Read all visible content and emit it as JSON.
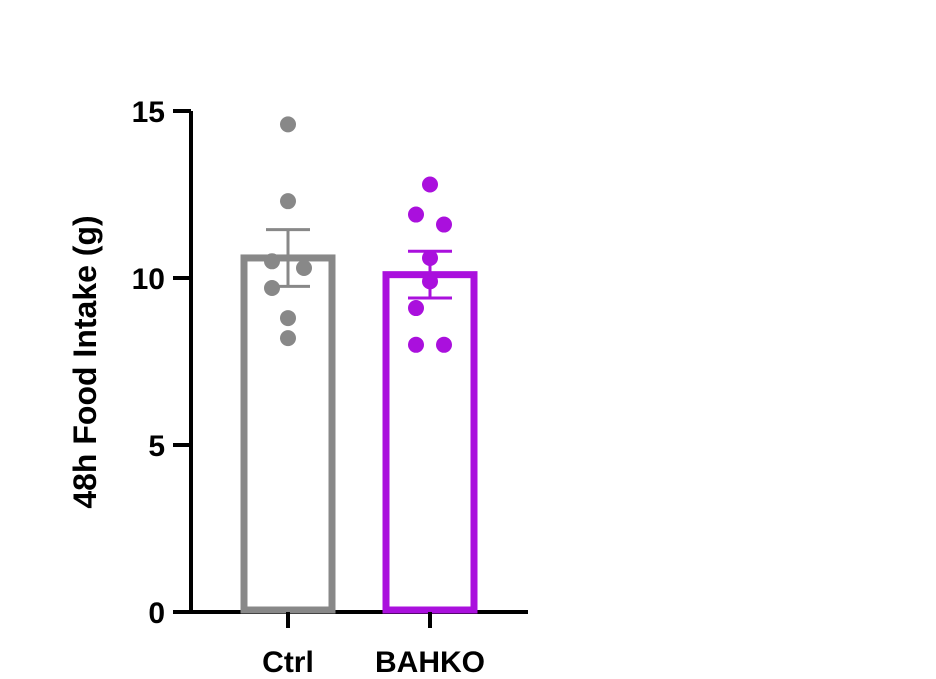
{
  "chart_data": {
    "type": "bar",
    "title": "",
    "xlabel": "",
    "ylabel": "48h Food Intake (g)",
    "ylim": [
      0,
      15
    ],
    "yticks": [
      0,
      5,
      10,
      15
    ],
    "grid": false,
    "legend": "none",
    "categories": [
      "Ctrl",
      "BAHKO"
    ],
    "series": [
      {
        "values": [
          10.6,
          10.1
        ],
        "sem": [
          0.85,
          0.7
        ],
        "points": [
          [
            14.6,
            12.3,
            10.5,
            10.3,
            9.7,
            8.8,
            8.2
          ],
          [
            12.8,
            11.9,
            11.6,
            10.6,
            9.9,
            9.1,
            8.0,
            8.0
          ]
        ],
        "colors": [
          "#888888",
          "#aa10dd"
        ]
      }
    ]
  }
}
